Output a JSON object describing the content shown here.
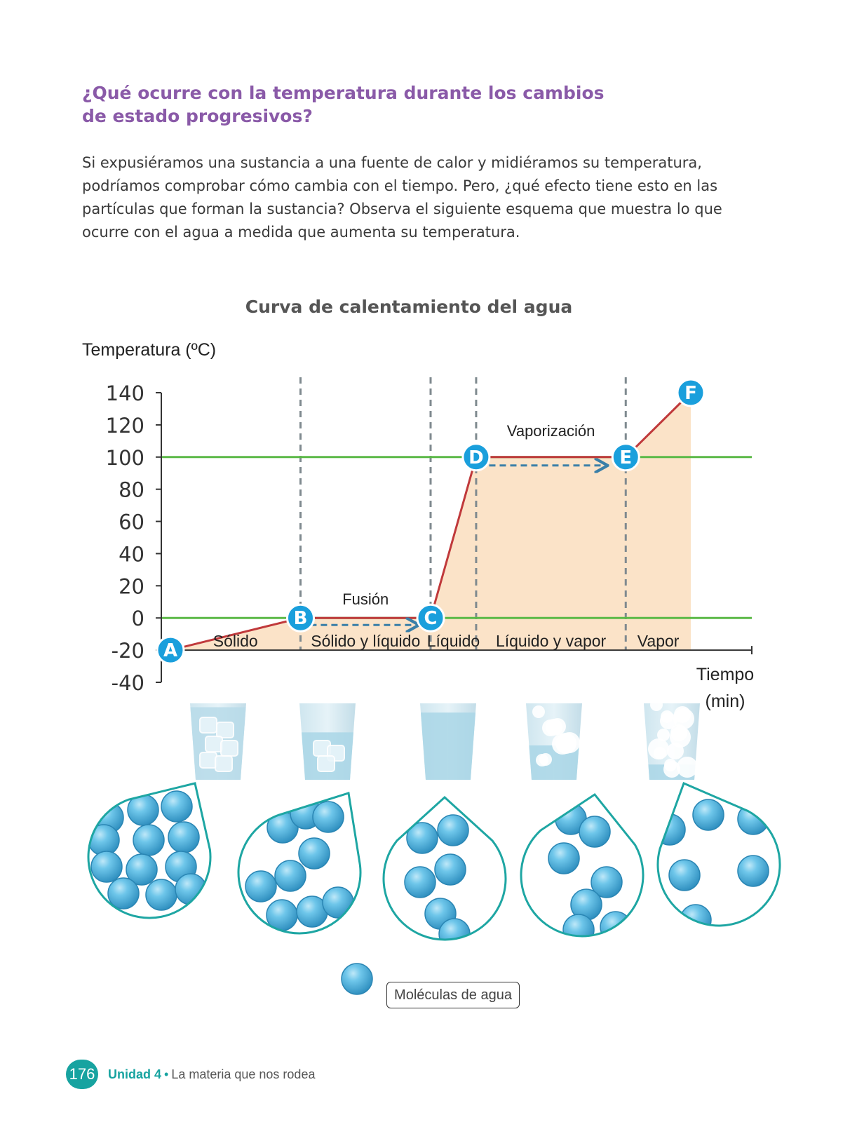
{
  "heading": {
    "line1": "¿Qué ocurre con la temperatura durante los cambios",
    "line2": "de estado progresivos?"
  },
  "intro": {
    "lines": [
      "Si expusiéramos una sustancia a una fuente de calor y midiéramos su temperatura,",
      "podríamos comprobar cómo cambia con el tiempo. Pero, ¿qué efecto tiene esto en las",
      "partículas que forman la sustancia? Observa el siguiente esquema que muestra lo que",
      "ocurre con el agua a medida que aumenta su temperatura."
    ]
  },
  "chart_data": {
    "type": "line",
    "title": "Curva de calentamiento del agua",
    "ylabel": "Temperatura (ºC)",
    "xlabel_lines": [
      "Tiempo",
      "(min)"
    ],
    "ylim": [
      -40,
      140
    ],
    "yticks": [
      140,
      120,
      100,
      80,
      60,
      40,
      20,
      0,
      -20,
      -40
    ],
    "grid": false,
    "reference_lines": [
      0,
      100
    ],
    "points": [
      {
        "label": "A",
        "x": 0,
        "y": -20
      },
      {
        "label": "B",
        "x": 4,
        "y": 0
      },
      {
        "label": "C",
        "x": 8,
        "y": 0
      },
      {
        "label": "D",
        "x": 9.4,
        "y": 100
      },
      {
        "label": "E",
        "x": 14,
        "y": 100
      },
      {
        "label": "F",
        "x": 16,
        "y": 140
      }
    ],
    "xmax": 18,
    "boundaries": [
      4,
      8,
      9.4,
      14
    ],
    "regions": [
      {
        "label": "Sólido",
        "from": 0,
        "to": 4
      },
      {
        "label": "Sólido y líquido",
        "from": 4,
        "to": 8
      },
      {
        "label": "Líquido",
        "from": 8,
        "to": 9.4
      },
      {
        "label": "Líquido y vapor",
        "from": 9.4,
        "to": 14
      },
      {
        "label": "Vapor",
        "from": 14,
        "to": 16
      }
    ],
    "annotations": [
      {
        "text": "Fusión",
        "x": 6,
        "y": 0
      },
      {
        "text": "Vaporización",
        "x": 11.7,
        "y": 100
      }
    ],
    "colors": {
      "curve": "#c0393b",
      "fill": "#fbe3c8",
      "ref_line": "#5bb947",
      "dashed": "#7f8a8f",
      "arrow": "#3a7fa8",
      "marker": "#1a9fdc"
    }
  },
  "illustrations": {
    "glasses": [
      "ice-cubes",
      "ice-in-water",
      "water",
      "boiling-water",
      "steam"
    ],
    "molecule_color": "#4eb6e0",
    "drop_border_color": "#1ea6a3"
  },
  "legend": {
    "label": "Moléculas de agua"
  },
  "footer": {
    "page_number": "176",
    "unit": "Unidad 4",
    "separator": "•",
    "topic": "La materia que nos rodea"
  }
}
